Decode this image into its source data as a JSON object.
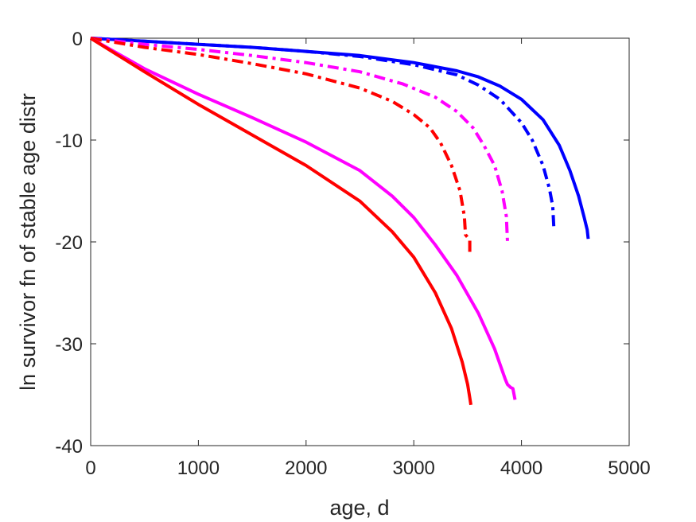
{
  "chart_data": {
    "type": "line",
    "xlabel": "age, d",
    "ylabel": "ln survivor fn of stable age distr",
    "xlim": [
      0,
      5000
    ],
    "ylim": [
      -40,
      0
    ],
    "xticks": [
      0,
      1000,
      2000,
      3000,
      4000,
      5000
    ],
    "yticks": [
      0,
      -10,
      -20,
      -30,
      -40
    ],
    "xtick_labels": [
      "0",
      "1000",
      "2000",
      "3000",
      "4000",
      "5000"
    ],
    "ytick_labels": [
      "0",
      "-10",
      "-20",
      "-30",
      "-40"
    ],
    "grid": false,
    "legend": "none",
    "series": [
      {
        "color": "#0000ff",
        "style": "solid",
        "points": [
          [
            0,
            0
          ],
          [
            500,
            -0.3
          ],
          [
            1000,
            -0.6
          ],
          [
            1500,
            -0.9
          ],
          [
            2000,
            -1.3
          ],
          [
            2500,
            -1.7
          ],
          [
            3000,
            -2.4
          ],
          [
            3400,
            -3.2
          ],
          [
            3600,
            -3.8
          ],
          [
            3800,
            -4.7
          ],
          [
            4000,
            -6.0
          ],
          [
            4200,
            -8.0
          ],
          [
            4350,
            -10.5
          ],
          [
            4450,
            -13.0
          ],
          [
            4530,
            -15.5
          ],
          [
            4580,
            -17.5
          ],
          [
            4610,
            -18.8
          ],
          [
            4620,
            -19.7
          ]
        ]
      },
      {
        "color": "#0000ff",
        "style": "dashdot",
        "points": [
          [
            0,
            0
          ],
          [
            500,
            -0.3
          ],
          [
            1000,
            -0.6
          ],
          [
            1500,
            -0.9
          ],
          [
            2000,
            -1.3
          ],
          [
            2500,
            -1.8
          ],
          [
            3000,
            -2.6
          ],
          [
            3400,
            -3.6
          ],
          [
            3600,
            -4.6
          ],
          [
            3800,
            -6.0
          ],
          [
            4000,
            -8.3
          ],
          [
            4100,
            -10.0
          ],
          [
            4200,
            -12.5
          ],
          [
            4260,
            -14.8
          ],
          [
            4290,
            -16.5
          ],
          [
            4300,
            -18.5
          ]
        ]
      },
      {
        "color": "#ff00ff",
        "style": "dashdot",
        "points": [
          [
            0,
            0
          ],
          [
            500,
            -0.6
          ],
          [
            1000,
            -1.1
          ],
          [
            1500,
            -1.7
          ],
          [
            2000,
            -2.4
          ],
          [
            2500,
            -3.3
          ],
          [
            2900,
            -4.5
          ],
          [
            3200,
            -5.8
          ],
          [
            3400,
            -7.2
          ],
          [
            3550,
            -8.8
          ],
          [
            3650,
            -10.5
          ],
          [
            3750,
            -12.5
          ],
          [
            3820,
            -15.0
          ],
          [
            3860,
            -17.5
          ],
          [
            3870,
            -20.0
          ]
        ]
      },
      {
        "color": "#ff0000",
        "style": "dashdot",
        "points": [
          [
            0,
            0
          ],
          [
            500,
            -0.9
          ],
          [
            1000,
            -1.6
          ],
          [
            1500,
            -2.5
          ],
          [
            2000,
            -3.5
          ],
          [
            2500,
            -4.9
          ],
          [
            2800,
            -6.2
          ],
          [
            3000,
            -7.5
          ],
          [
            3150,
            -8.8
          ],
          [
            3250,
            -10.3
          ],
          [
            3350,
            -12.5
          ],
          [
            3430,
            -15.0
          ],
          [
            3470,
            -17.5
          ],
          [
            3480,
            -19.3
          ],
          [
            3520,
            -19.8
          ],
          [
            3520,
            -21.0
          ]
        ]
      },
      {
        "color": "#ff00ff",
        "style": "solid",
        "points": [
          [
            0,
            0
          ],
          [
            500,
            -3.0
          ],
          [
            1000,
            -5.5
          ],
          [
            1500,
            -7.8
          ],
          [
            2000,
            -10.2
          ],
          [
            2500,
            -13.0
          ],
          [
            2800,
            -15.5
          ],
          [
            3000,
            -17.6
          ],
          [
            3200,
            -20.3
          ],
          [
            3400,
            -23.3
          ],
          [
            3600,
            -27.0
          ],
          [
            3750,
            -30.5
          ],
          [
            3850,
            -33.5
          ],
          [
            3870,
            -34.0
          ],
          [
            3900,
            -34.3
          ],
          [
            3920,
            -34.4
          ],
          [
            3940,
            -35.5
          ]
        ]
      },
      {
        "color": "#ff0000",
        "style": "solid",
        "points": [
          [
            0,
            0
          ],
          [
            500,
            -3.3
          ],
          [
            1000,
            -6.5
          ],
          [
            1500,
            -9.5
          ],
          [
            2000,
            -12.5
          ],
          [
            2500,
            -16.0
          ],
          [
            2800,
            -19.0
          ],
          [
            3000,
            -21.5
          ],
          [
            3200,
            -25.0
          ],
          [
            3350,
            -28.5
          ],
          [
            3450,
            -31.8
          ],
          [
            3500,
            -34.0
          ],
          [
            3520,
            -35.3
          ],
          [
            3530,
            -36.0
          ]
        ]
      }
    ]
  }
}
